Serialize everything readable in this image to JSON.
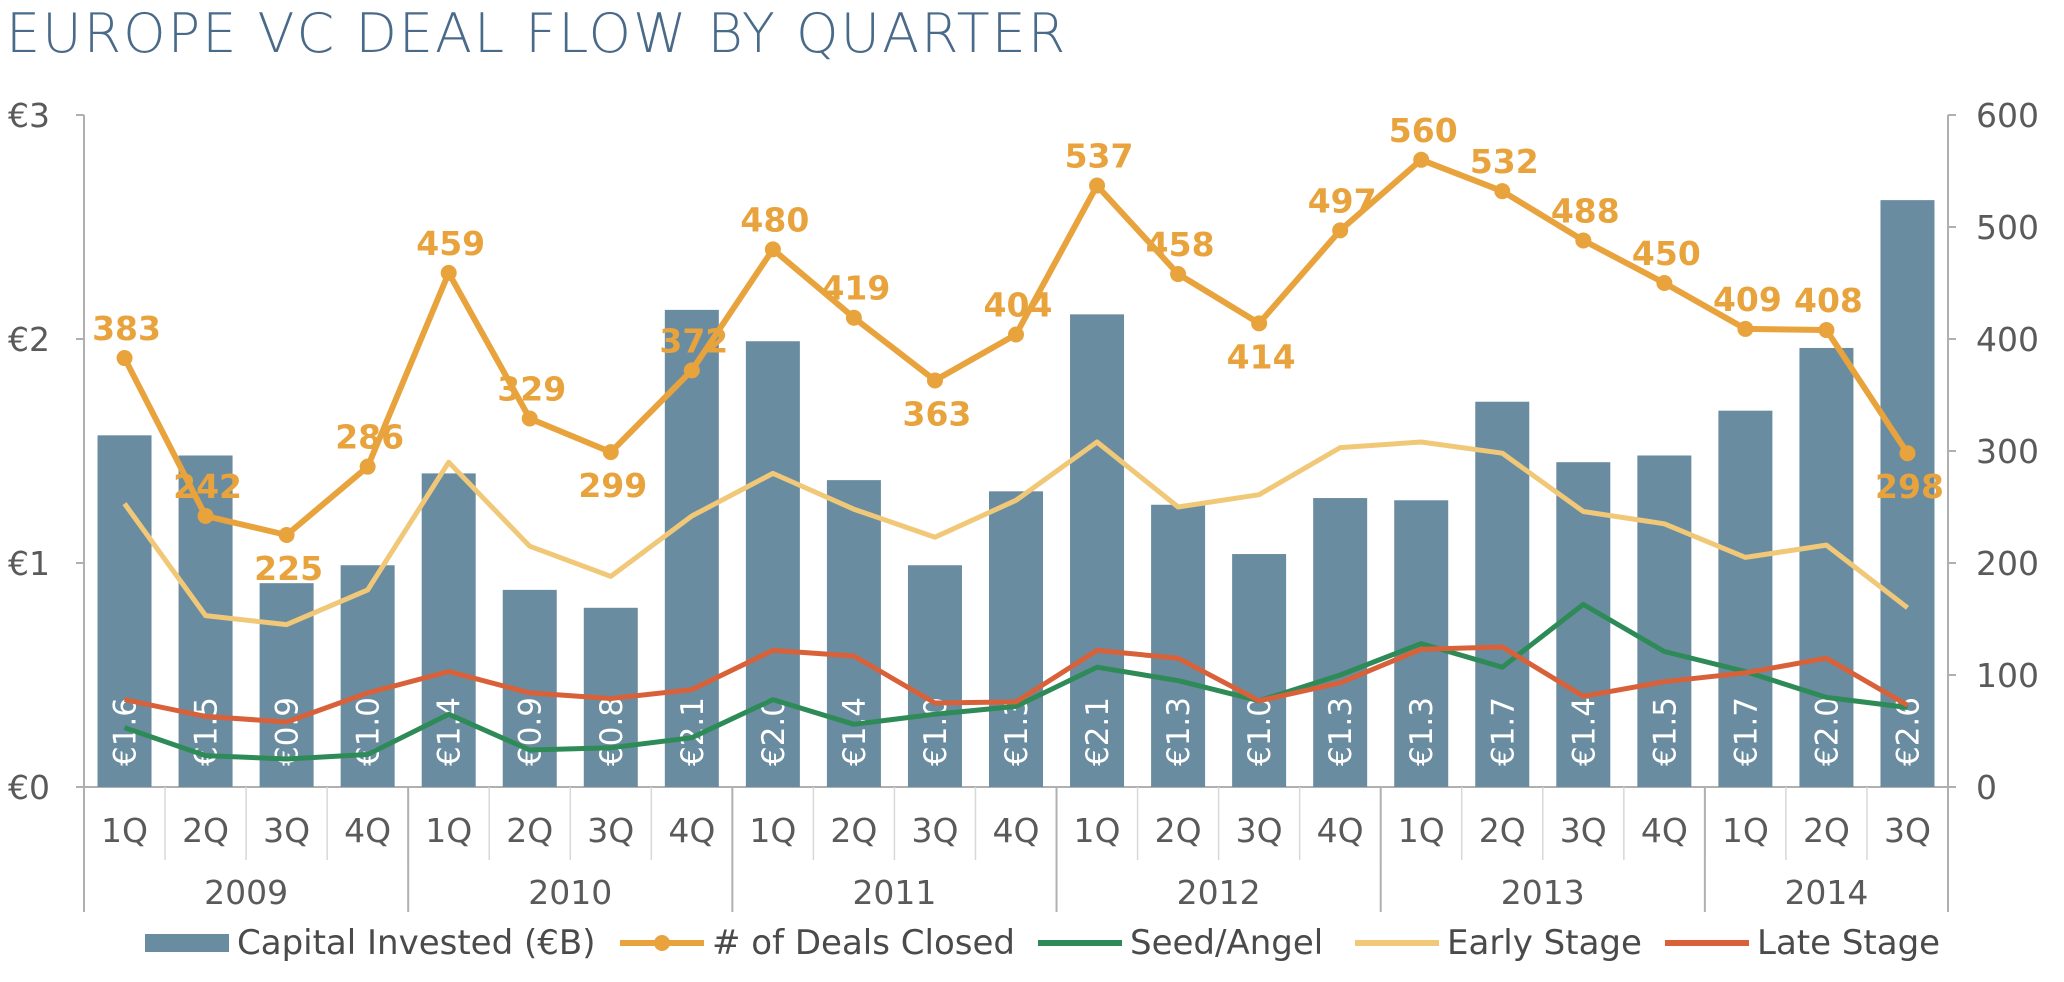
{
  "title": "EUROPE VC DEAL FLOW BY QUARTER",
  "colors": {
    "bar": "#6a8ca0",
    "deals": "#e8a33d",
    "seed": "#2e8b57",
    "early": "#f0c878",
    "late": "#d9613a",
    "axis": "#b0b0b0",
    "text": "#5a5a5a"
  },
  "chart_data": {
    "type": "bar",
    "title": "EUROPE VC DEAL FLOW BY QUARTER",
    "quarters": [
      "1Q",
      "2Q",
      "3Q",
      "4Q",
      "1Q",
      "2Q",
      "3Q",
      "4Q",
      "1Q",
      "2Q",
      "3Q",
      "4Q",
      "1Q",
      "2Q",
      "3Q",
      "4Q",
      "1Q",
      "2Q",
      "3Q",
      "4Q",
      "1Q",
      "2Q",
      "3Q"
    ],
    "years": [
      {
        "label": "2009",
        "count": 4
      },
      {
        "label": "2010",
        "count": 4
      },
      {
        "label": "2011",
        "count": 4
      },
      {
        "label": "2012",
        "count": 4
      },
      {
        "label": "2013",
        "count": 4
      },
      {
        "label": "2014",
        "count": 3
      }
    ],
    "y_left": {
      "ticks": [
        "€0",
        "€1",
        "€2",
        "€3"
      ],
      "range": [
        0,
        3
      ]
    },
    "y_right": {
      "ticks": [
        "0",
        "100",
        "200",
        "300",
        "400",
        "500",
        "600"
      ],
      "range": [
        0,
        600
      ]
    },
    "series": [
      {
        "name": "Capital Invested (€B)",
        "kind": "bar",
        "axis": "left",
        "values": [
          1.57,
          1.48,
          0.91,
          0.99,
          1.4,
          0.88,
          0.8,
          2.13,
          1.99,
          1.37,
          0.99,
          1.32,
          2.11,
          1.26,
          1.04,
          1.29,
          1.28,
          1.72,
          1.45,
          1.48,
          1.68,
          1.96,
          2.62
        ],
        "labels": [
          "€1.6",
          "€1.5",
          "€0.9",
          "€1.0",
          "€1.4",
          "€0.9",
          "€0.8",
          "€2.1",
          "€2.0",
          "€1.4",
          "€1.0",
          "€1.3",
          "€2.1",
          "€1.3",
          "€1.0",
          "€1.3",
          "€1.3",
          "€1.7",
          "€1.4",
          "€1.5",
          "€1.7",
          "€2.0",
          "€2.6"
        ]
      },
      {
        "name": "# of Deals Closed",
        "kind": "line-markers",
        "axis": "right",
        "values": [
          383,
          242,
          225,
          286,
          459,
          329,
          299,
          372,
          480,
          419,
          363,
          404,
          537,
          458,
          414,
          497,
          560,
          532,
          488,
          450,
          409,
          408,
          298
        ],
        "labels": [
          "383",
          "242",
          "225",
          "286",
          "459",
          "329",
          "299",
          "372",
          "480",
          "419",
          "363",
          "404",
          "537",
          "458",
          "414",
          "497",
          "560",
          "532",
          "488",
          "450",
          "409",
          "408",
          "298"
        ]
      },
      {
        "name": "Seed/Angel",
        "kind": "line",
        "axis": "right",
        "values": [
          53,
          28,
          25,
          29,
          65,
          33,
          35,
          44,
          78,
          56,
          65,
          72,
          107,
          95,
          77,
          100,
          128,
          107,
          163,
          121,
          103,
          80,
          71
        ]
      },
      {
        "name": "Early Stage",
        "kind": "line",
        "axis": "right",
        "values": [
          253,
          153,
          145,
          176,
          290,
          215,
          188,
          242,
          280,
          248,
          223,
          256,
          308,
          250,
          261,
          303,
          308,
          298,
          246,
          235,
          205,
          216,
          160
        ]
      },
      {
        "name": "Late Stage",
        "kind": "line",
        "axis": "right",
        "values": [
          78,
          63,
          58,
          84,
          103,
          84,
          79,
          87,
          122,
          117,
          75,
          76,
          122,
          115,
          77,
          93,
          123,
          125,
          81,
          94,
          102,
          115,
          73
        ]
      }
    ]
  }
}
